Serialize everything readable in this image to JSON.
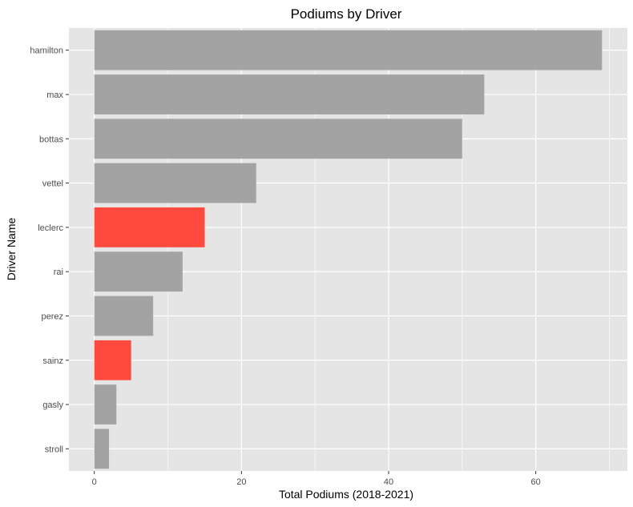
{
  "chart_data": {
    "type": "bar",
    "orientation": "horizontal",
    "title": "Podiums by Driver",
    "xlabel": "Total Podiums (2018-2021)",
    "ylabel": "Driver Name",
    "categories": [
      "hamilton",
      "max",
      "bottas",
      "vettel",
      "leclerc",
      "rai",
      "perez",
      "sainz",
      "gasly",
      "stroll"
    ],
    "values": [
      69,
      53,
      50,
      22,
      15,
      12,
      8,
      5,
      3,
      2
    ],
    "highlighted": [
      false,
      false,
      false,
      false,
      true,
      false,
      false,
      true,
      false,
      false
    ],
    "xlim": [
      -3.45,
      72.45
    ],
    "xticks": [
      "0",
      "20",
      "40",
      "60"
    ],
    "grid": true,
    "legend": "none",
    "colors": {
      "default_bar": "#a3a3a3",
      "highlight_bar": "#ff4a3d",
      "panel_background": "#e5e5e5",
      "grid": "#ffffff"
    }
  }
}
